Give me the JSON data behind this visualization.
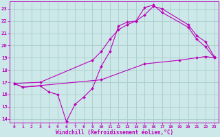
{
  "xlabel": "Windchill (Refroidissement éolien,°C)",
  "bg_color": "#cce8e8",
  "line_color": "#bb00bb",
  "grid_color": "#aacccc",
  "xlim_min": -0.5,
  "xlim_max": 23.5,
  "ylim_min": 13.7,
  "ylim_max": 23.6,
  "yticks": [
    14,
    15,
    16,
    17,
    18,
    19,
    20,
    21,
    22,
    23
  ],
  "xticks": [
    0,
    1,
    2,
    3,
    4,
    5,
    6,
    7,
    8,
    9,
    10,
    11,
    12,
    13,
    14,
    15,
    16,
    17,
    18,
    19,
    20,
    21,
    22,
    23
  ],
  "line1_x": [
    0,
    1,
    3,
    4,
    5,
    6,
    7,
    8,
    9,
    10,
    11,
    12,
    13,
    14,
    15,
    16,
    17,
    20,
    21,
    22,
    23
  ],
  "line1_y": [
    16.9,
    16.6,
    16.7,
    16.2,
    16.0,
    13.8,
    15.2,
    15.8,
    16.5,
    18.3,
    19.5,
    21.6,
    21.9,
    22.0,
    23.1,
    23.3,
    22.7,
    21.5,
    20.5,
    19.9,
    19.0
  ],
  "line2_x": [
    0,
    3,
    9,
    10,
    11,
    12,
    13,
    14,
    15,
    16,
    17,
    20,
    21,
    22,
    23
  ],
  "line2_y": [
    16.9,
    17.0,
    18.8,
    19.5,
    20.5,
    21.3,
    21.7,
    22.0,
    22.5,
    23.2,
    23.0,
    21.7,
    20.8,
    20.3,
    19.1
  ],
  "line3_x": [
    0,
    1,
    10,
    15,
    19,
    21,
    22,
    23
  ],
  "line3_y": [
    16.9,
    16.6,
    17.2,
    18.5,
    18.8,
    19.0,
    19.1,
    19.0
  ]
}
